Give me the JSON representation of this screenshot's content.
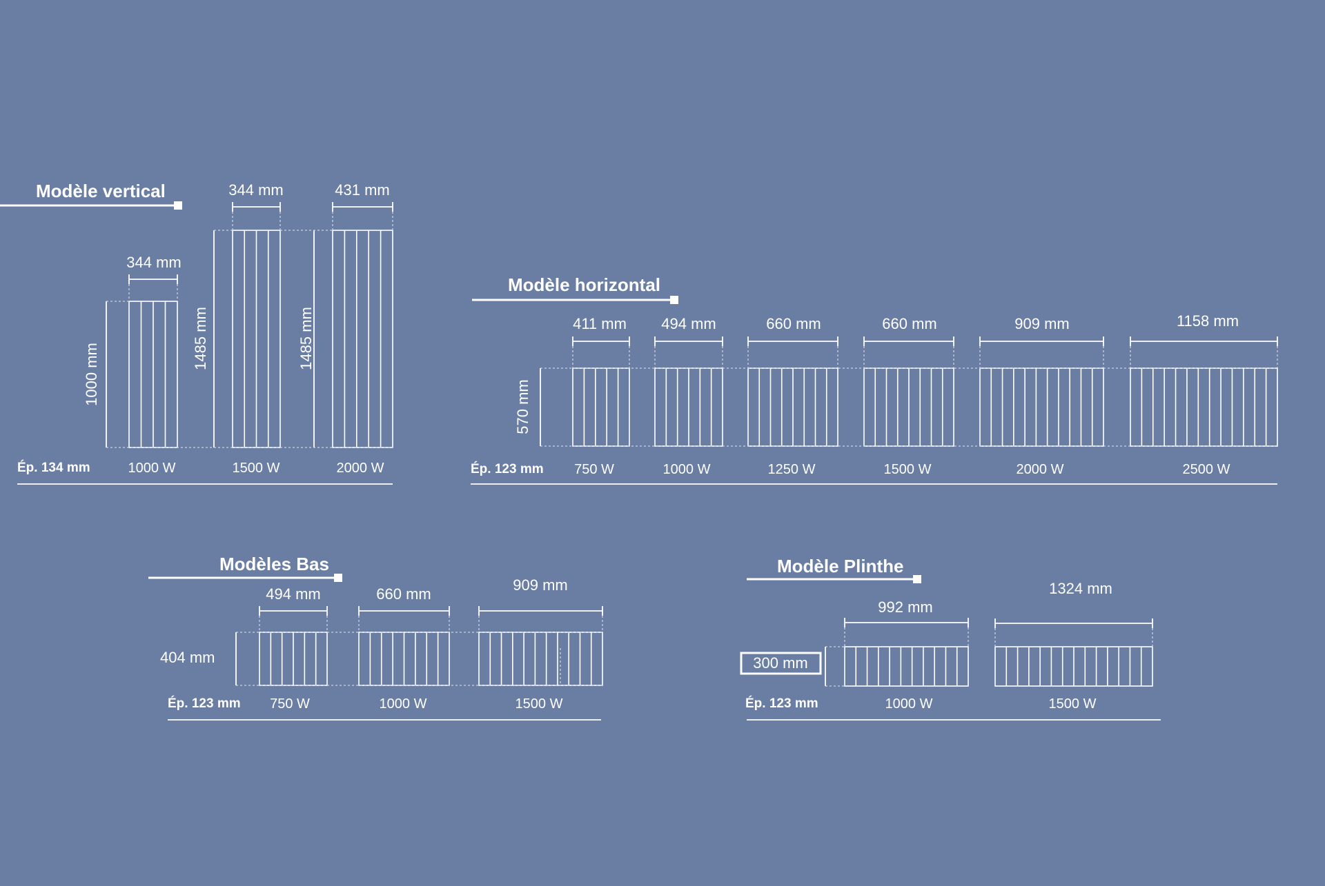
{
  "colors": {
    "background": "#6a7ea3",
    "lines": "#ffffff"
  },
  "vertical": {
    "title": "Modèle vertical",
    "thickness": "Ép. 134 mm",
    "heights": [
      "1000 mm",
      "1485 mm",
      "1485 mm"
    ],
    "widths": [
      "344 mm",
      "344 mm",
      "431 mm"
    ],
    "powers": [
      "1000 W",
      "1500 W",
      "2000 W"
    ]
  },
  "horizontal": {
    "title": "Modèle horizontal",
    "thickness": "Ép. 123 mm",
    "height": "570 mm",
    "widths": [
      "411 mm",
      "494 mm",
      "660 mm",
      "660 mm",
      "909 mm",
      "1158 mm"
    ],
    "powers": [
      "750 W",
      "1000 W",
      "1250 W",
      "1500 W",
      "2000 W",
      "2500 W"
    ]
  },
  "bas": {
    "title": "Modèles Bas",
    "thickness": "Ép. 123 mm",
    "height": "404 mm",
    "widths": [
      "494 mm",
      "660 mm",
      "909 mm"
    ],
    "powers": [
      "750 W",
      "1000 W",
      "1500 W"
    ]
  },
  "plinthe": {
    "title": "Modèle Plinthe",
    "thickness": "Ép. 123 mm",
    "height": "300 mm",
    "widths": [
      "992 mm",
      "1324 mm"
    ],
    "powers": [
      "1000 W",
      "1500 W"
    ]
  }
}
